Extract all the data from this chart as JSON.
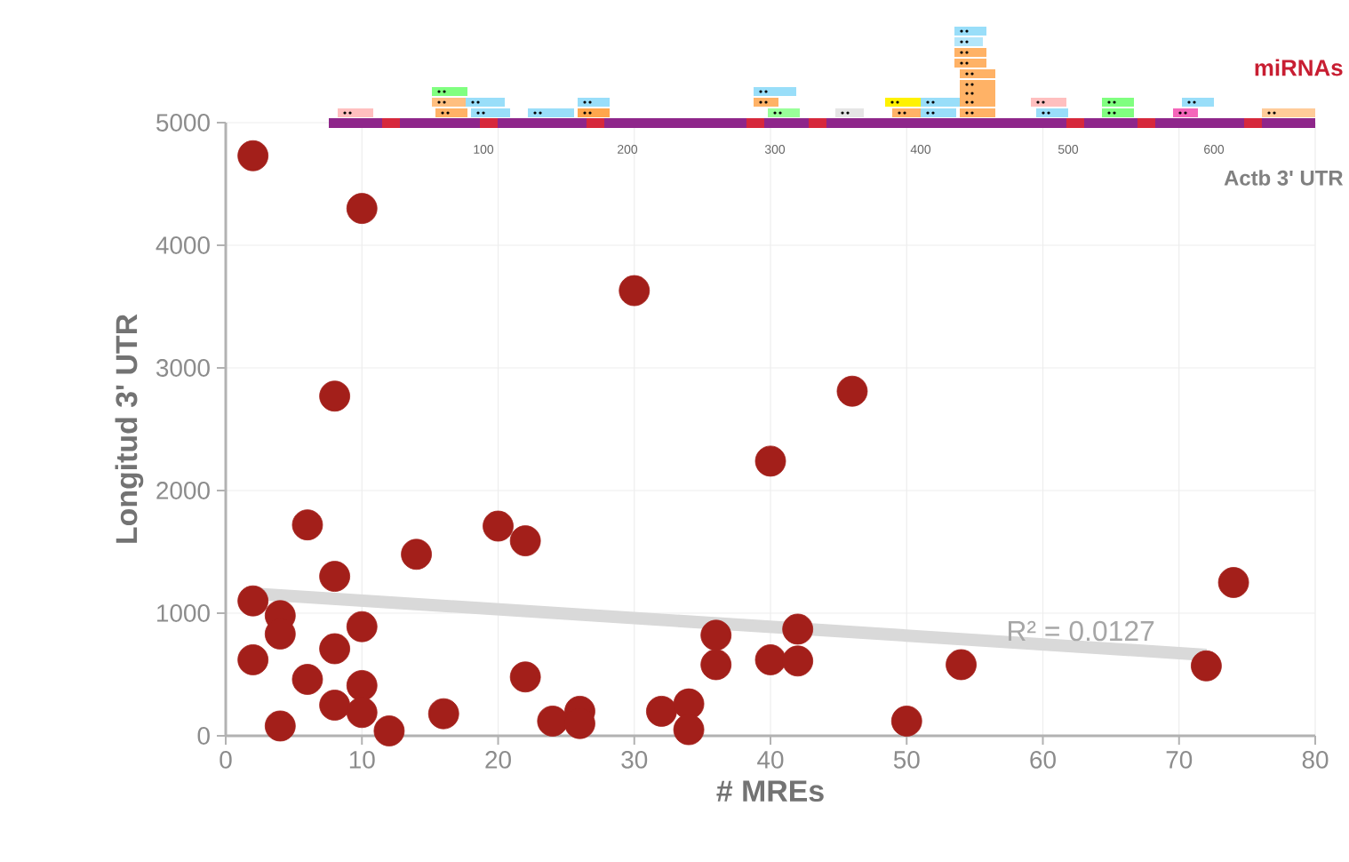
{
  "chart_data": {
    "type": "scatter",
    "xlabel": "# MREs",
    "ylabel": "Longitud 3' UTR",
    "xlim": [
      0,
      80
    ],
    "ylim": [
      0,
      5000
    ],
    "xticks": [
      0,
      10,
      20,
      30,
      40,
      50,
      60,
      70,
      80
    ],
    "yticks": [
      0,
      1000,
      2000,
      3000,
      4000,
      5000
    ],
    "grid": true,
    "series": [
      {
        "color": "#a31f1a",
        "marker": "circle",
        "x": [
          2,
          10,
          30,
          8,
          40,
          6,
          20,
          22,
          14,
          8,
          2,
          4,
          4,
          10,
          8,
          2,
          36,
          36,
          40,
          6,
          22,
          10,
          8,
          10,
          4,
          12,
          16,
          24,
          26,
          26,
          32,
          34,
          34,
          46,
          42,
          42,
          54,
          50,
          72,
          74
        ],
        "values": [
          4730,
          4300,
          3630,
          2770,
          2240,
          1720,
          1710,
          1590,
          1480,
          1300,
          1100,
          980,
          830,
          890,
          710,
          620,
          820,
          580,
          620,
          460,
          480,
          410,
          250,
          190,
          80,
          40,
          180,
          120,
          200,
          100,
          200,
          260,
          50,
          2810,
          870,
          610,
          580,
          120,
          570,
          1250
        ]
      },
      {
        "type": "line",
        "color": "#d9d9d9",
        "marker": "none",
        "line_style": "solid",
        "x": [
          2,
          72
        ],
        "values": [
          1160,
          660
        ]
      }
    ],
    "annotations": [
      "miRNAs",
      "Actb 3' UTR",
      "100",
      "200",
      "300",
      "400",
      "500",
      "600",
      "R² = 0.0127"
    ]
  }
}
